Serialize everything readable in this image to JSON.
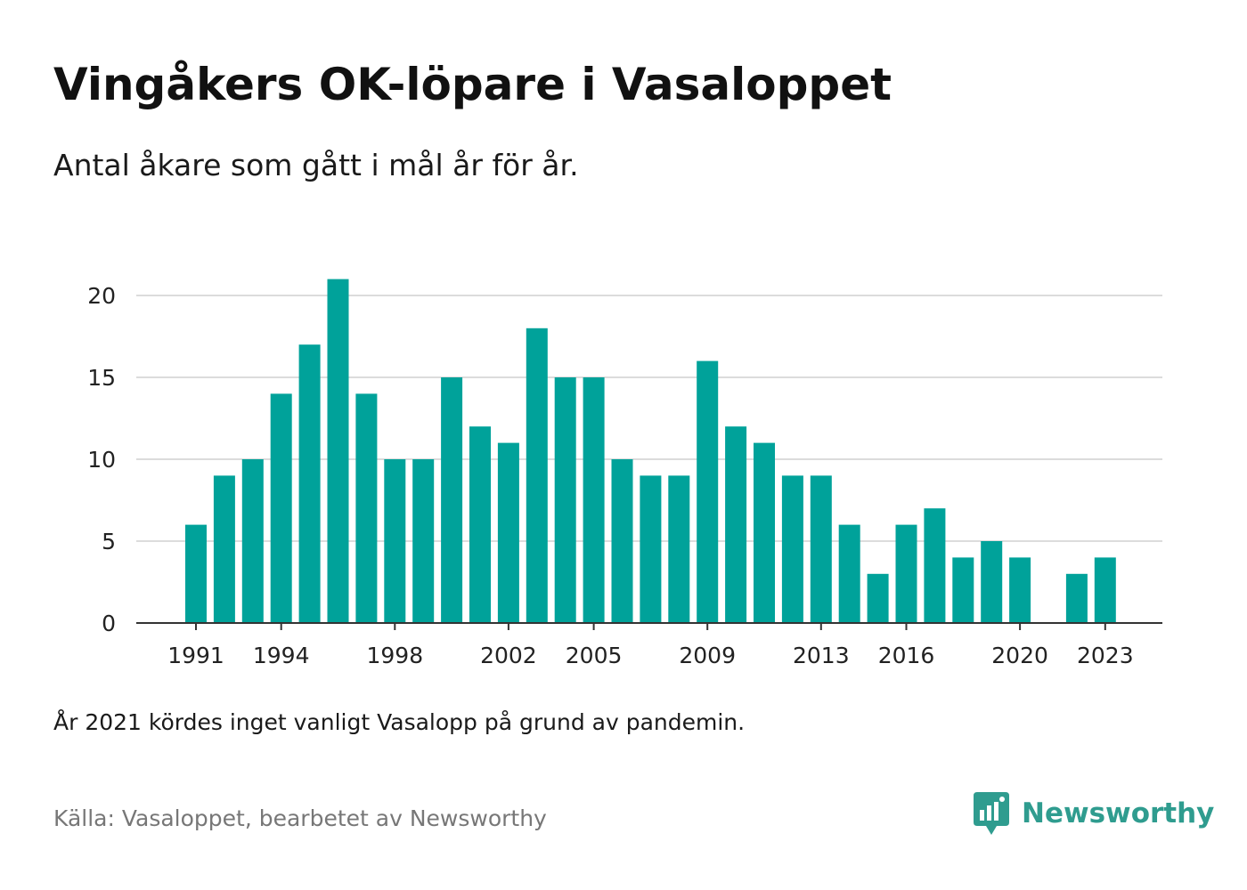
{
  "title": "Vingåkers OK-löpare i Vasaloppet",
  "subtitle": "Antal åkare som gått i mål år för år.",
  "note": "År 2021 kördes inget vanligt Vasalopp på grund av pandemin.",
  "source": "Källa: Vasaloppet, bearbetet av Newsworthy",
  "brand": {
    "name": "Newsworthy",
    "icon": "newsworthy-logo-icon",
    "color": "#2f9c8f"
  },
  "chart_data": {
    "type": "bar",
    "x": [
      1991,
      1992,
      1993,
      1994,
      1995,
      1996,
      1997,
      1998,
      1999,
      2000,
      2001,
      2002,
      2003,
      2004,
      2005,
      2006,
      2007,
      2008,
      2009,
      2010,
      2011,
      2012,
      2013,
      2014,
      2015,
      2016,
      2017,
      2018,
      2019,
      2020,
      2021,
      2022,
      2023
    ],
    "values": [
      6,
      9,
      10,
      14,
      17,
      21,
      14,
      10,
      10,
      15,
      12,
      11,
      18,
      15,
      15,
      10,
      9,
      9,
      16,
      12,
      11,
      9,
      9,
      6,
      3,
      6,
      7,
      4,
      5,
      4,
      null,
      3,
      4
    ],
    "x_tick_labels": [
      "1991",
      "1994",
      "1998",
      "2002",
      "2005",
      "2009",
      "2013",
      "2016",
      "2020",
      "2023"
    ],
    "y_ticks": [
      0,
      5,
      10,
      15,
      20
    ],
    "ylim": [
      0,
      21
    ],
    "bar_color": "#00a29a",
    "grid": true,
    "xlabel": "",
    "ylabel": ""
  }
}
